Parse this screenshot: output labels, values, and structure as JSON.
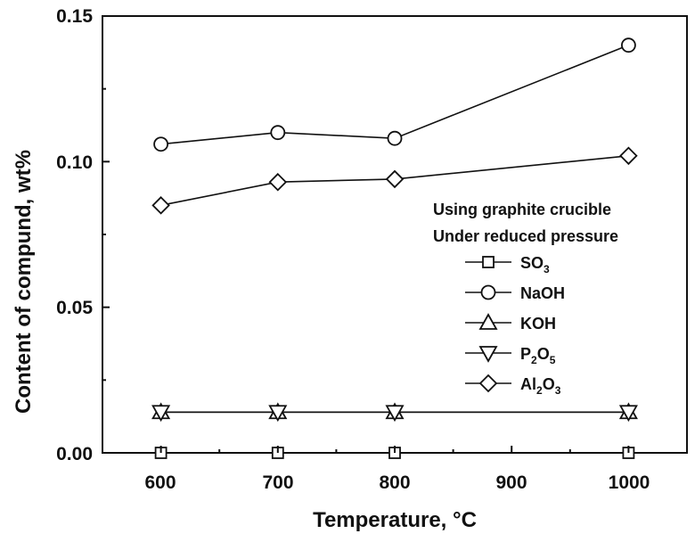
{
  "chart_data": {
    "type": "line",
    "x": [
      600,
      700,
      800,
      1000
    ],
    "xlabel": "Temperature, °C",
    "ylabel": "Content of compund, wt%",
    "xlim": [
      550,
      1050
    ],
    "ylim": [
      0.0,
      0.15
    ],
    "xticks": [
      "600",
      "700",
      "800",
      "900",
      "1000"
    ],
    "yticks": [
      "0.00",
      "0.05",
      "0.10",
      "0.15"
    ],
    "legend_title_lines": [
      "Using graphite crucible",
      "Under reduced pressure"
    ],
    "legend_position": "right",
    "grid": false,
    "series": [
      {
        "name": "SO3",
        "label_main": "SO",
        "label_sub1": "3",
        "label_mid": "",
        "label_sub2": "",
        "marker": "square",
        "values": [
          0.0,
          0.0,
          0.0,
          0.0
        ]
      },
      {
        "name": "NaOH",
        "label_main": "NaOH",
        "label_sub1": "",
        "label_mid": "",
        "label_sub2": "",
        "marker": "circle",
        "values": [
          0.106,
          0.11,
          0.108,
          0.14
        ]
      },
      {
        "name": "KOH",
        "label_main": "KOH",
        "label_sub1": "",
        "label_mid": "",
        "label_sub2": "",
        "marker": "triangle-up",
        "values": [
          0.014,
          0.014,
          0.014,
          0.014
        ]
      },
      {
        "name": "P2O5",
        "label_main": "P",
        "label_sub1": "2",
        "label_mid": "O",
        "label_sub2": "5",
        "marker": "triangle-down",
        "values": [
          0.014,
          0.014,
          0.014,
          0.014
        ]
      },
      {
        "name": "Al2O3",
        "label_main": "Al",
        "label_sub1": "2",
        "label_mid": "O",
        "label_sub2": "3",
        "marker": "diamond",
        "values": [
          0.085,
          0.093,
          0.094,
          0.102
        ]
      }
    ]
  }
}
